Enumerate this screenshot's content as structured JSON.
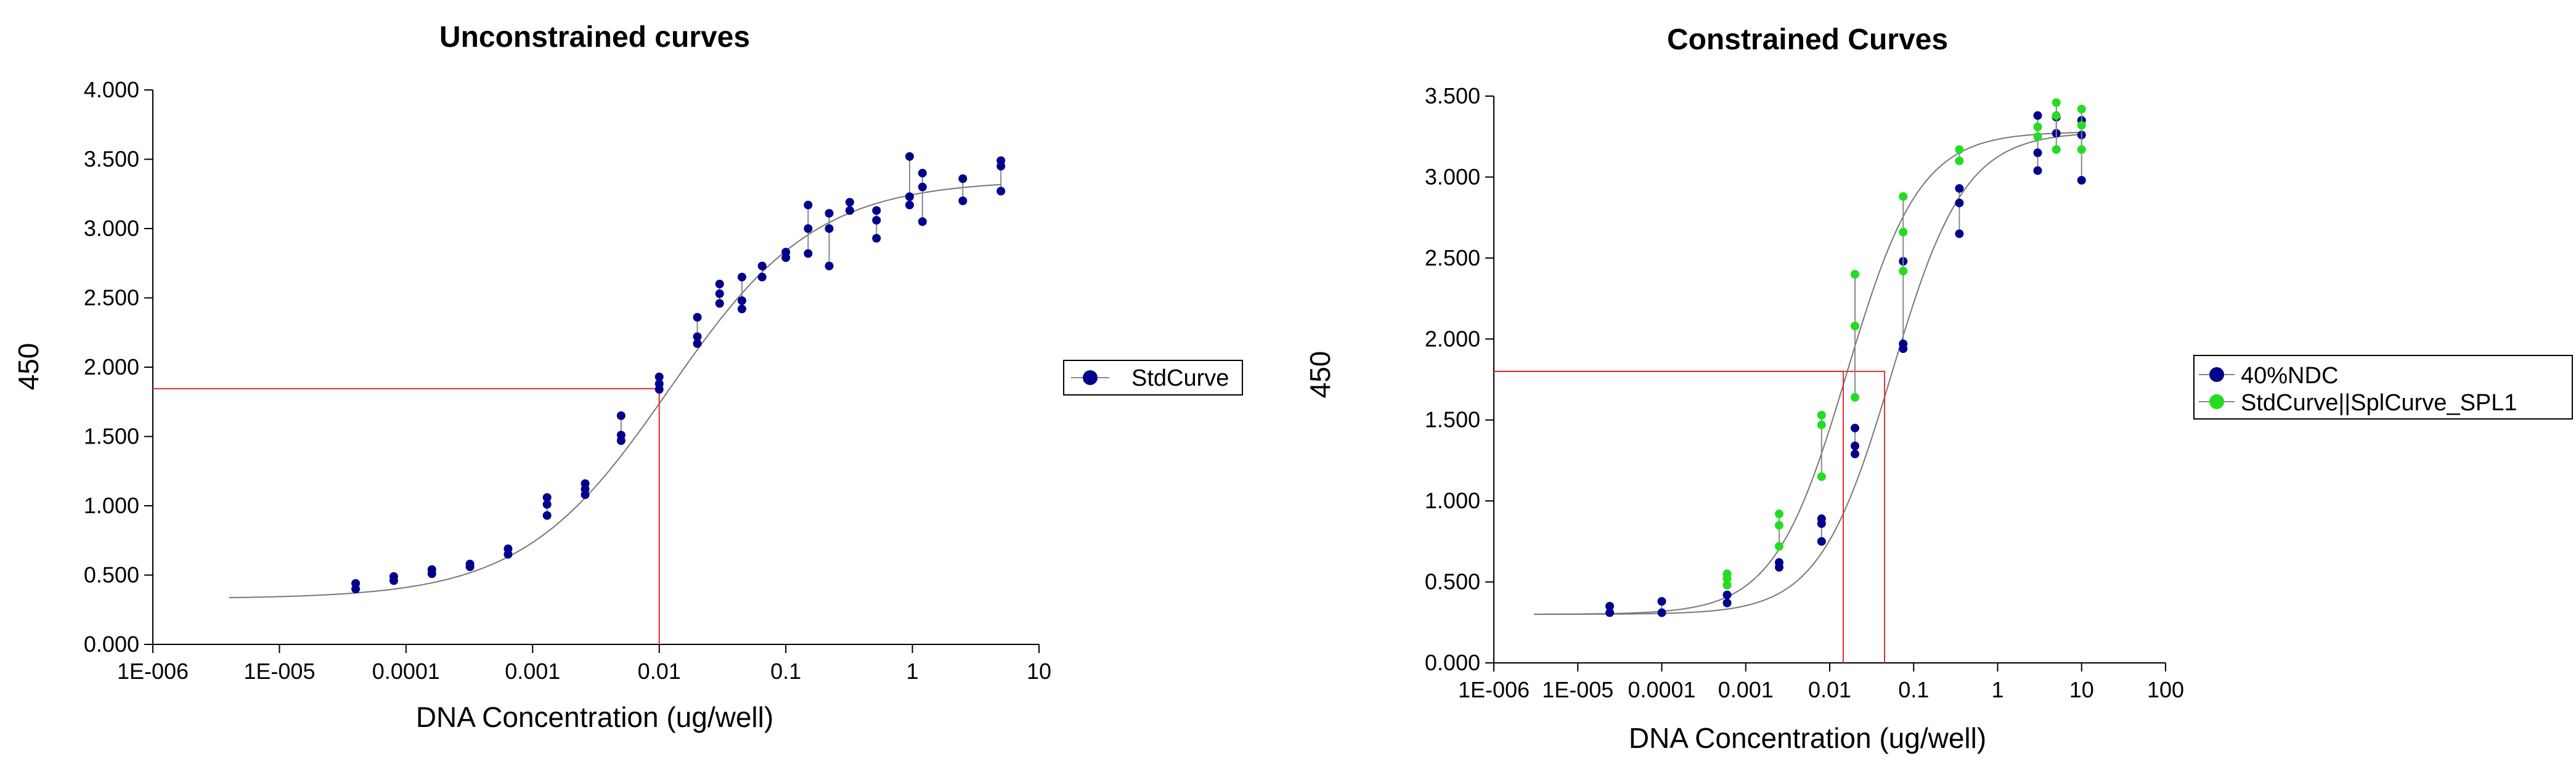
{
  "chart_data": [
    {
      "type": "scatter",
      "title": "Unconstrained curves",
      "xlabel": "DNA Concentration (ug/well)",
      "ylabel": "450",
      "x_scale": "log",
      "xlim": [
        1e-06,
        10
      ],
      "ylim": [
        0,
        4
      ],
      "x_ticks": [
        "1E-006",
        "1E-005",
        "0.0001",
        "0.001",
        "0.01",
        "0.1",
        "1",
        "10"
      ],
      "y_ticks": [
        "0.000",
        "0.500",
        "1.000",
        "1.500",
        "2.000",
        "2.500",
        "3.000",
        "3.500",
        "4.000"
      ],
      "grid": false,
      "legend_position": "right",
      "series": [
        {
          "name": "StdCurve",
          "color": "#00008B",
          "points": [
            [
              4e-05,
              0.4
            ],
            [
              4e-05,
              0.44
            ],
            [
              8e-05,
              0.46
            ],
            [
              8e-05,
              0.49
            ],
            [
              0.00016,
              0.51
            ],
            [
              0.00016,
              0.54
            ],
            [
              0.00032,
              0.56
            ],
            [
              0.00032,
              0.58
            ],
            [
              0.00064,
              0.65
            ],
            [
              0.00064,
              0.69
            ],
            [
              0.0013,
              0.93
            ],
            [
              0.0013,
              1.01
            ],
            [
              0.0013,
              1.06
            ],
            [
              0.0026,
              1.08
            ],
            [
              0.0026,
              1.12
            ],
            [
              0.0026,
              1.16
            ],
            [
              0.005,
              1.47
            ],
            [
              0.005,
              1.51
            ],
            [
              0.005,
              1.65
            ],
            [
              0.01,
              1.84
            ],
            [
              0.01,
              1.88
            ],
            [
              0.01,
              1.93
            ],
            [
              0.02,
              2.17
            ],
            [
              0.02,
              2.22
            ],
            [
              0.02,
              2.36
            ],
            [
              0.03,
              2.46
            ],
            [
              0.03,
              2.53
            ],
            [
              0.03,
              2.6
            ],
            [
              0.045,
              2.42
            ],
            [
              0.045,
              2.48
            ],
            [
              0.045,
              2.65
            ],
            [
              0.065,
              2.65
            ],
            [
              0.065,
              2.73
            ],
            [
              0.1,
              2.79
            ],
            [
              0.1,
              2.83
            ],
            [
              0.15,
              2.82
            ],
            [
              0.15,
              3.0
            ],
            [
              0.15,
              3.17
            ],
            [
              0.22,
              2.73
            ],
            [
              0.22,
              3.0
            ],
            [
              0.22,
              3.11
            ],
            [
              0.32,
              3.13
            ],
            [
              0.32,
              3.19
            ],
            [
              0.52,
              2.93
            ],
            [
              0.52,
              3.06
            ],
            [
              0.52,
              3.13
            ],
            [
              0.95,
              3.17
            ],
            [
              0.95,
              3.23
            ],
            [
              0.95,
              3.52
            ],
            [
              1.2,
              3.05
            ],
            [
              1.2,
              3.3
            ],
            [
              1.2,
              3.4
            ],
            [
              2.5,
              3.2
            ],
            [
              2.5,
              3.36
            ],
            [
              5.0,
              3.27
            ],
            [
              5.0,
              3.45
            ],
            [
              5.0,
              3.49
            ]
          ]
        }
      ],
      "fit_curve": {
        "bottom": 0.33,
        "top": 3.35,
        "ec50": 0.012,
        "hill": 0.75,
        "x_range": [
          4e-06,
          5
        ]
      },
      "reference_lines": [
        {
          "x": 0.01,
          "y": 1.845
        }
      ]
    },
    {
      "type": "scatter",
      "title": "Constrained Curves",
      "xlabel": "DNA Concentration (ug/well)",
      "ylabel": "450",
      "x_scale": "log",
      "xlim": [
        1e-06,
        100
      ],
      "ylim": [
        0,
        3.5
      ],
      "x_ticks": [
        "1E-006",
        "1E-005",
        "0.0001",
        "0.001",
        "0.01",
        "0.1",
        "1",
        "10",
        "100"
      ],
      "y_ticks": [
        "0.000",
        "0.500",
        "1.000",
        "1.500",
        "2.000",
        "2.500",
        "3.000",
        "3.500"
      ],
      "grid": false,
      "legend_position": "right",
      "series": [
        {
          "name": "40%NDC",
          "color": "#00008B",
          "points": [
            [
              2.4e-05,
              0.31
            ],
            [
              2.4e-05,
              0.35
            ],
            [
              0.0001,
              0.31
            ],
            [
              0.0001,
              0.38
            ],
            [
              0.0006,
              0.37
            ],
            [
              0.0006,
              0.42
            ],
            [
              0.0025,
              0.59
            ],
            [
              0.0025,
              0.62
            ],
            [
              0.008,
              0.75
            ],
            [
              0.008,
              0.86
            ],
            [
              0.008,
              0.89
            ],
            [
              0.02,
              1.29
            ],
            [
              0.02,
              1.34
            ],
            [
              0.02,
              1.45
            ],
            [
              0.075,
              1.94
            ],
            [
              0.075,
              1.97
            ],
            [
              0.075,
              2.48
            ],
            [
              0.35,
              2.65
            ],
            [
              0.35,
              2.84
            ],
            [
              0.35,
              2.93
            ],
            [
              3.0,
              3.04
            ],
            [
              3.0,
              3.15
            ],
            [
              3.0,
              3.38
            ],
            [
              5.0,
              3.27
            ],
            [
              5.0,
              3.37
            ],
            [
              10.0,
              2.98
            ],
            [
              10.0,
              3.26
            ],
            [
              10.0,
              3.35
            ]
          ]
        },
        {
          "name": "StdCurve||SplCurve_SPL1",
          "color": "#22DD22",
          "points": [
            [
              0.0006,
              0.48
            ],
            [
              0.0006,
              0.52
            ],
            [
              0.0006,
              0.55
            ],
            [
              0.0025,
              0.72
            ],
            [
              0.0025,
              0.85
            ],
            [
              0.0025,
              0.92
            ],
            [
              0.008,
              1.15
            ],
            [
              0.008,
              1.47
            ],
            [
              0.008,
              1.53
            ],
            [
              0.02,
              1.64
            ],
            [
              0.02,
              2.08
            ],
            [
              0.02,
              2.4
            ],
            [
              0.075,
              2.42
            ],
            [
              0.075,
              2.66
            ],
            [
              0.075,
              2.88
            ],
            [
              0.35,
              3.1
            ],
            [
              0.35,
              3.17
            ],
            [
              3.0,
              3.25
            ],
            [
              3.0,
              3.31
            ],
            [
              5.0,
              3.17
            ],
            [
              5.0,
              3.38
            ],
            [
              5.0,
              3.46
            ],
            [
              10.0,
              3.17
            ],
            [
              10.0,
              3.32
            ],
            [
              10.0,
              3.42
            ]
          ]
        }
      ],
      "fit_curves": [
        {
          "bottom": 0.3,
          "top": 3.28,
          "ec50": 0.016,
          "hill": 1.0,
          "x_range": [
            3e-06,
            10
          ]
        },
        {
          "bottom": 0.3,
          "top": 3.28,
          "ec50": 0.055,
          "hill": 1.0,
          "x_range": [
            3e-06,
            10
          ]
        }
      ],
      "reference_lines": [
        {
          "x": 0.0145,
          "y": 1.8
        },
        {
          "x": 0.045,
          "y": 1.8
        }
      ]
    }
  ]
}
